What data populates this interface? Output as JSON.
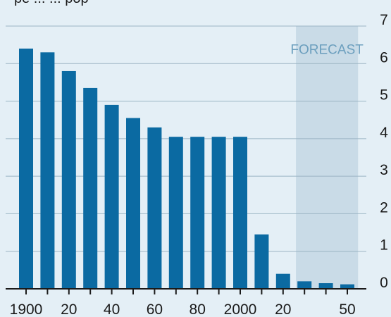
{
  "top_text": "pe ... ... pop",
  "chart_data": {
    "type": "bar",
    "x": [
      1900,
      1910,
      1920,
      1930,
      1940,
      1950,
      1960,
      1970,
      1980,
      1990,
      2000,
      2010,
      2020,
      2030,
      2040,
      2050
    ],
    "values": [
      6.4,
      6.3,
      5.8,
      5.35,
      4.9,
      4.55,
      4.3,
      4.05,
      4.05,
      4.05,
      4.05,
      1.45,
      0.4,
      0.2,
      0.15,
      0.12
    ],
    "x_tick_labels": [
      {
        "x": 1900,
        "label": "1900"
      },
      {
        "x": 1920,
        "label": "20"
      },
      {
        "x": 1940,
        "label": "40"
      },
      {
        "x": 1960,
        "label": "60"
      },
      {
        "x": 1980,
        "label": "80"
      },
      {
        "x": 2000,
        "label": "2000"
      },
      {
        "x": 2020,
        "label": "20"
      },
      {
        "x": 2050,
        "label": "50"
      }
    ],
    "y_ticks": [
      0,
      1,
      2,
      3,
      4,
      5,
      6,
      7
    ],
    "ylim": [
      0,
      7
    ],
    "y_axis_side": "right",
    "grid": true,
    "forecast": {
      "label": "FORECAST",
      "from": 2026,
      "to": 2055
    },
    "colors": {
      "bar": "#0b6aa2",
      "grid": "#9bb4c4",
      "forecast_band": "#c9dbe7",
      "forecast_text": "#6c9fbe",
      "background": "#e4eff6"
    }
  }
}
